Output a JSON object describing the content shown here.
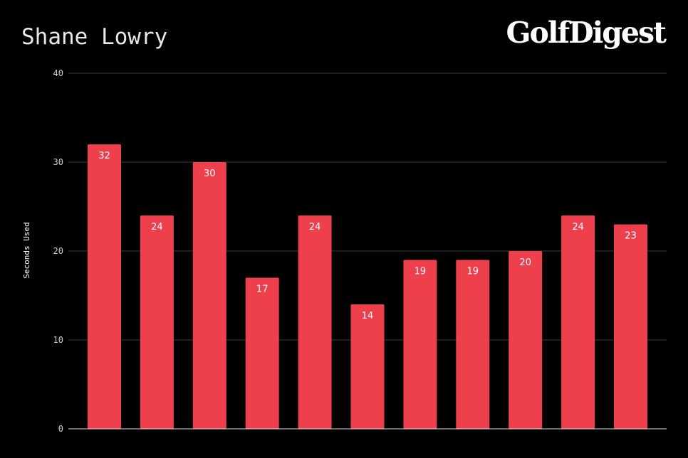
{
  "logo": {
    "text": "GolfDigest"
  },
  "colors": {
    "background": "#000000",
    "bar": "#EE3F4C",
    "gridline": "#3c3c3c",
    "baseline": "#d9d9d9",
    "text": "#ffffff"
  },
  "chart_data": {
    "type": "bar",
    "title": "Shane Lowry",
    "xlabel": "",
    "ylabel": "Seconds Used",
    "ylim": [
      0,
      40
    ],
    "yticks": [
      0,
      10,
      20,
      30,
      40
    ],
    "grid": true,
    "legend": "none",
    "series": [
      {
        "values": [
          32,
          24,
          30,
          17,
          24,
          14,
          19,
          19,
          20,
          24,
          23
        ],
        "data_labels": [
          "32",
          "24",
          "30",
          "17",
          "24",
          "14",
          "19",
          "19",
          "20",
          "24",
          "23"
        ]
      }
    ]
  }
}
